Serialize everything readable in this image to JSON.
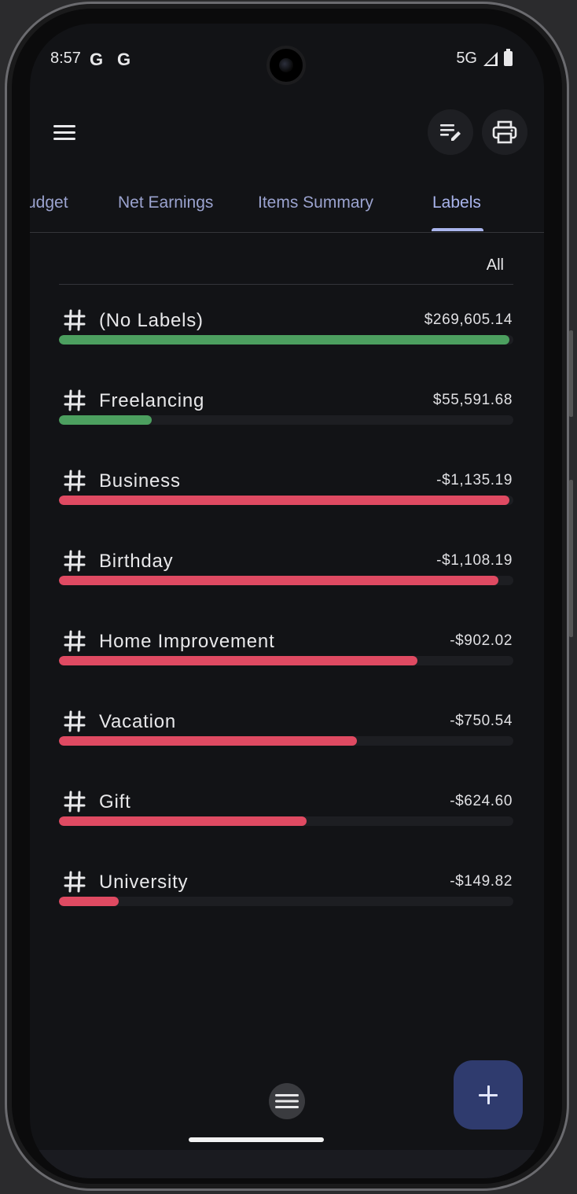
{
  "status_bar": {
    "time": "8:57",
    "left_icons": [
      "G",
      "G"
    ],
    "network": "5G"
  },
  "app_bar": {
    "menu_icon": "hamburger-menu-icon",
    "actions": [
      "edit-list-icon",
      "print-icon"
    ]
  },
  "tabs": [
    {
      "label": "udget"
    },
    {
      "label": "Net Earnings"
    },
    {
      "label": "Items Summary"
    },
    {
      "label": "Labels",
      "active": true
    }
  ],
  "filter": {
    "label": "All"
  },
  "colors": {
    "income": "#4c9f5f",
    "expense": "#df4a62",
    "accent": "#a9b4ec"
  },
  "labels": [
    {
      "name": "(No Labels)",
      "amount": "$269,605.14",
      "fraction": 1.0,
      "type": "income"
    },
    {
      "name": "Freelancing",
      "amount": "$55,591.68",
      "fraction": 0.206,
      "type": "income"
    },
    {
      "name": "Business",
      "amount": "-$1,135.19",
      "fraction": 1.0,
      "type": "expense"
    },
    {
      "name": "Birthday",
      "amount": "-$1,108.19",
      "fraction": 0.976,
      "type": "expense"
    },
    {
      "name": "Home Improvement",
      "amount": "-$902.02",
      "fraction": 0.795,
      "type": "expense"
    },
    {
      "name": "Vacation",
      "amount": "-$750.54",
      "fraction": 0.661,
      "type": "expense"
    },
    {
      "name": "Gift",
      "amount": "-$624.60",
      "fraction": 0.55,
      "type": "expense"
    },
    {
      "name": "University",
      "amount": "-$149.82",
      "fraction": 0.132,
      "type": "expense"
    }
  ]
}
